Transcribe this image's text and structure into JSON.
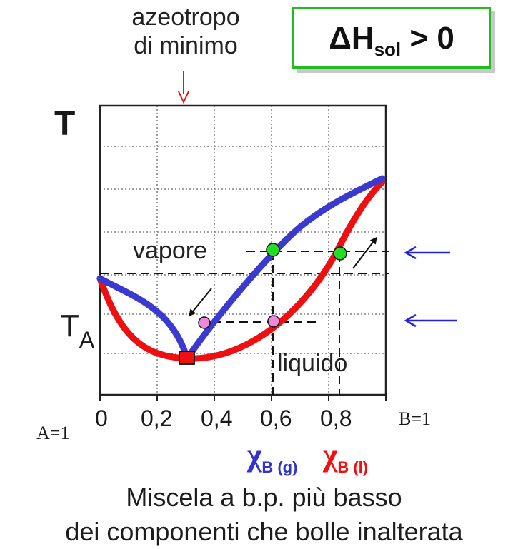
{
  "annotation": {
    "line1": "azeotropo",
    "line2": "di minimo"
  },
  "enthalpy": {
    "delta": "ΔH",
    "sub": "sol",
    "rest": " > 0",
    "border_color": "#22bb22"
  },
  "axis": {
    "y_label": "T",
    "ta_main": "T",
    "ta_sub": "A",
    "x_ticks": [
      "0",
      "0,2",
      "0,4",
      "0,6",
      "0,8"
    ],
    "end_left": "A=1",
    "end_right": "B=1"
  },
  "regions": {
    "vapor": "vapore",
    "liquid": "liquido"
  },
  "legend": {
    "gas": {
      "symbol": "χ",
      "sub": "B (g)",
      "color": "#3333cc"
    },
    "liquid": {
      "symbol": "χ",
      "sub": "B (l)",
      "color": "#ee1111"
    }
  },
  "caption": {
    "line1": "Miscela a b.p. più basso",
    "line2": "dei componenti che bolle inalterata"
  },
  "colors": {
    "vapor_curve": "#3a3ad0",
    "liquid_curve": "#ee1010",
    "arrow_blue": "#2222dd",
    "azeotrope_arrow": "#ee1111"
  }
}
